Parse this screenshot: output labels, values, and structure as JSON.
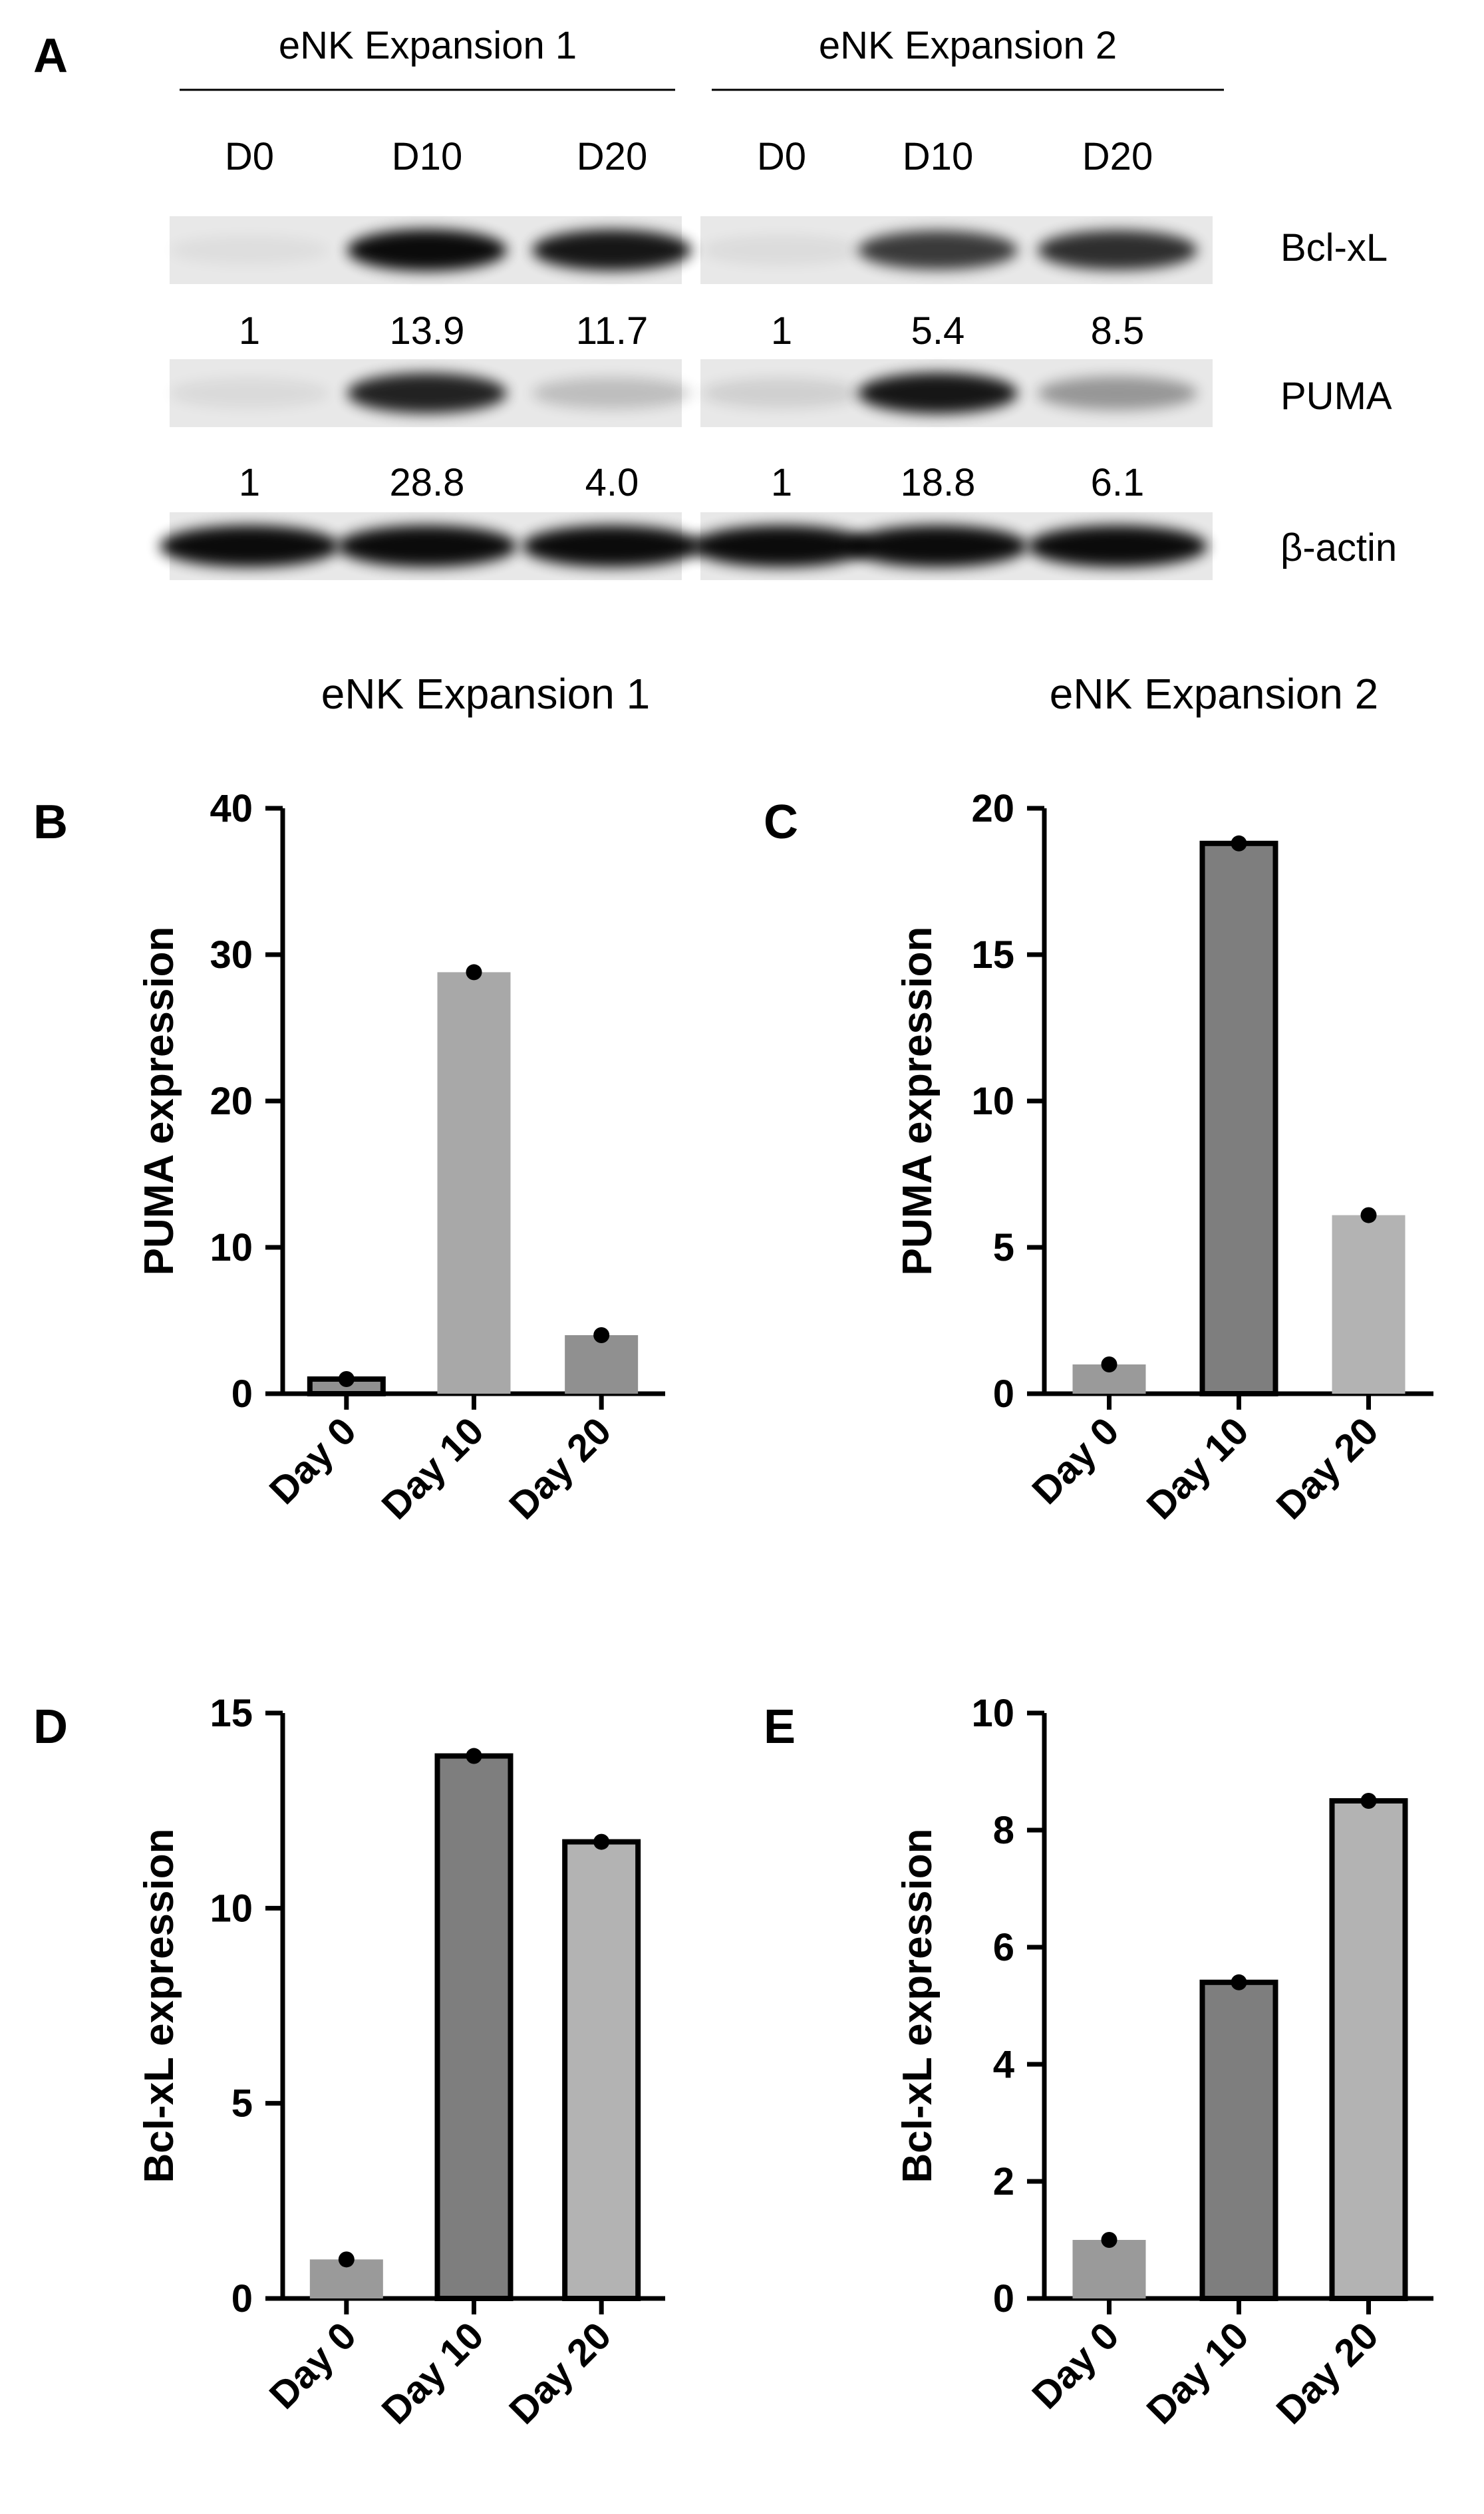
{
  "panel_labels": {
    "a": "A",
    "b": "B",
    "c": "C",
    "d": "D",
    "e": "E"
  },
  "blot": {
    "groups": [
      "eNK Expansion 1",
      "eNK Expansion 2"
    ],
    "lanes": [
      "D0",
      "D10",
      "D20",
      "D0",
      "D10",
      "D20"
    ],
    "row_labels": {
      "bclxl": "Bcl-xL",
      "puma": "PUMA",
      "actin": "β-actin"
    },
    "bclxl_values": [
      "1",
      "13.9",
      "11.7",
      "1",
      "5.4",
      "8.5"
    ],
    "puma_values": [
      "1",
      "28.8",
      "4.0",
      "1",
      "18.8",
      "6.1"
    ],
    "band_intensity": {
      "bclxl": [
        0.04,
        0.95,
        0.9,
        0.05,
        0.75,
        0.8
      ],
      "puma": [
        0.06,
        0.85,
        0.18,
        0.1,
        0.9,
        0.35
      ],
      "actin": [
        0.95,
        0.95,
        0.95,
        0.95,
        0.95,
        0.95
      ]
    }
  },
  "column_titles": [
    "eNK Expansion 1",
    "eNK Expansion 2"
  ],
  "chart_data": [
    {
      "panel": "B",
      "type": "bar",
      "categories": [
        "Day 0",
        "Day 10",
        "Day 20"
      ],
      "values": [
        1,
        28.8,
        4.0
      ],
      "ylabel": "PUMA expression",
      "ylim": [
        0,
        40
      ],
      "yticks": [
        "0",
        "10",
        "20",
        "30",
        "40"
      ],
      "bar_fills": [
        "#909090",
        "#a8a8a8",
        "#909090"
      ],
      "bar_border": [
        true,
        false,
        false
      ]
    },
    {
      "panel": "C",
      "type": "bar",
      "categories": [
        "Day 0",
        "Day 10",
        "Day 20"
      ],
      "values": [
        1,
        18.8,
        6.1
      ],
      "ylabel": "PUMA expression",
      "ylim": [
        0,
        20
      ],
      "yticks": [
        "0",
        "5",
        "10",
        "15",
        "20"
      ],
      "bar_fills": [
        "#9a9a9a",
        "#7e7e7e",
        "#b3b3b3"
      ],
      "bar_border": [
        false,
        true,
        false
      ]
    },
    {
      "panel": "D",
      "type": "bar",
      "categories": [
        "Day 0",
        "Day 10",
        "Day 20"
      ],
      "values": [
        1,
        13.9,
        11.7
      ],
      "ylabel": "Bcl-xL expression",
      "ylim": [
        0,
        15
      ],
      "yticks": [
        "0",
        "5",
        "10",
        "15"
      ],
      "bar_fills": [
        "#9a9a9a",
        "#7e7e7e",
        "#b3b3b3"
      ],
      "bar_border": [
        false,
        true,
        true
      ]
    },
    {
      "panel": "E",
      "type": "bar",
      "categories": [
        "Day 0",
        "Day 10",
        "Day 20"
      ],
      "values": [
        1,
        5.4,
        8.5
      ],
      "ylabel": "Bcl-xL expression",
      "ylim": [
        0,
        10
      ],
      "yticks": [
        "0",
        "2",
        "4",
        "6",
        "8",
        "10"
      ],
      "bar_fills": [
        "#9a9a9a",
        "#7e7e7e",
        "#b3b3b3"
      ],
      "bar_border": [
        false,
        true,
        true
      ]
    }
  ]
}
